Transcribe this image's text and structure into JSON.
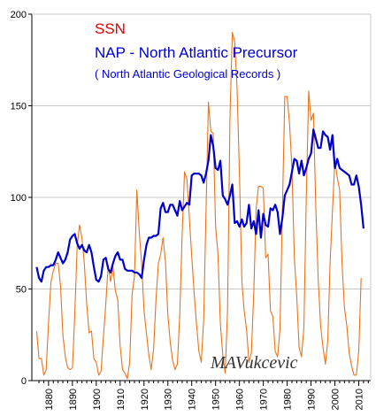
{
  "chart_data": {
    "type": "line",
    "title": "",
    "xlabel": "",
    "ylabel": "",
    "xlim": [
      1873,
      2015
    ],
    "ylim": [
      0,
      200
    ],
    "grid": "horizontal",
    "x_ticks": [
      "1880",
      "1890",
      "1900",
      "1910",
      "1920",
      "1930",
      "1940",
      "1950",
      "1960",
      "1970",
      "1980",
      "1990",
      "2000",
      "2010"
    ],
    "y_ticks": [
      "0",
      "50",
      "100",
      "150",
      "200"
    ],
    "legend": {
      "ssn_label": "SSN",
      "nap_label": "NAP - North  Atlantic Precursor",
      "nap_sublabel": "( North Atlantic Geological Records )"
    },
    "annotation": "MAVukcevic",
    "colors": {
      "ssn": "#e8741c",
      "nap": "#0000cc",
      "ssn_text": "#e60000",
      "nap_text": "#0000cc",
      "axis": "#000000",
      "grid": "#c8c8c8"
    },
    "series": [
      {
        "key": "ssn",
        "values": [
          [
            1875,
            27
          ],
          [
            1876,
            12
          ],
          [
            1877,
            12
          ],
          [
            1878,
            3
          ],
          [
            1879,
            6
          ],
          [
            1880,
            32
          ],
          [
            1881,
            54
          ],
          [
            1882,
            60
          ],
          [
            1883,
            64
          ],
          [
            1884,
            64
          ],
          [
            1885,
            52
          ],
          [
            1886,
            25
          ],
          [
            1887,
            13
          ],
          [
            1888,
            7
          ],
          [
            1889,
            6
          ],
          [
            1890,
            7
          ],
          [
            1891,
            36
          ],
          [
            1892,
            73
          ],
          [
            1893,
            85
          ],
          [
            1894,
            78
          ],
          [
            1895,
            64
          ],
          [
            1896,
            42
          ],
          [
            1897,
            26
          ],
          [
            1898,
            27
          ],
          [
            1899,
            12
          ],
          [
            1900,
            10
          ],
          [
            1901,
            3
          ],
          [
            1902,
            5
          ],
          [
            1903,
            24
          ],
          [
            1904,
            42
          ],
          [
            1905,
            63
          ],
          [
            1906,
            54
          ],
          [
            1907,
            62
          ],
          [
            1908,
            49
          ],
          [
            1909,
            44
          ],
          [
            1910,
            19
          ],
          [
            1911,
            6
          ],
          [
            1912,
            4
          ],
          [
            1913,
            1
          ],
          [
            1914,
            10
          ],
          [
            1915,
            47
          ],
          [
            1916,
            57
          ],
          [
            1917,
            104
          ],
          [
            1918,
            81
          ],
          [
            1919,
            64
          ],
          [
            1920,
            38
          ],
          [
            1921,
            26
          ],
          [
            1922,
            14
          ],
          [
            1923,
            6
          ],
          [
            1924,
            17
          ],
          [
            1925,
            44
          ],
          [
            1926,
            64
          ],
          [
            1927,
            69
          ],
          [
            1928,
            78
          ],
          [
            1929,
            65
          ],
          [
            1930,
            36
          ],
          [
            1931,
            21
          ],
          [
            1932,
            11
          ],
          [
            1933,
            6
          ],
          [
            1934,
            9
          ],
          [
            1935,
            36
          ],
          [
            1936,
            80
          ],
          [
            1937,
            114
          ],
          [
            1938,
            110
          ],
          [
            1939,
            89
          ],
          [
            1940,
            68
          ],
          [
            1941,
            48
          ],
          [
            1942,
            31
          ],
          [
            1943,
            16
          ],
          [
            1944,
            10
          ],
          [
            1945,
            33
          ],
          [
            1946,
            93
          ],
          [
            1947,
            152
          ],
          [
            1948,
            136
          ],
          [
            1949,
            135
          ],
          [
            1950,
            84
          ],
          [
            1951,
            69
          ],
          [
            1952,
            31
          ],
          [
            1953,
            14
          ],
          [
            1954,
            4
          ],
          [
            1955,
            38
          ],
          [
            1956,
            142
          ],
          [
            1957,
            190
          ],
          [
            1958,
            185
          ],
          [
            1959,
            159
          ],
          [
            1960,
            112
          ],
          [
            1961,
            54
          ],
          [
            1962,
            38
          ],
          [
            1963,
            28
          ],
          [
            1964,
            10
          ],
          [
            1965,
            15
          ],
          [
            1966,
            47
          ],
          [
            1967,
            94
          ],
          [
            1968,
            106
          ],
          [
            1969,
            106
          ],
          [
            1970,
            105
          ],
          [
            1971,
            67
          ],
          [
            1972,
            69
          ],
          [
            1973,
            38
          ],
          [
            1974,
            35
          ],
          [
            1975,
            16
          ],
          [
            1976,
            13
          ],
          [
            1977,
            28
          ],
          [
            1978,
            93
          ],
          [
            1979,
            155
          ],
          [
            1980,
            155
          ],
          [
            1981,
            140
          ],
          [
            1982,
            116
          ],
          [
            1983,
            67
          ],
          [
            1984,
            46
          ],
          [
            1985,
            18
          ],
          [
            1986,
            13
          ],
          [
            1987,
            29
          ],
          [
            1988,
            100
          ],
          [
            1989,
            158
          ],
          [
            1990,
            142
          ],
          [
            1991,
            146
          ],
          [
            1992,
            94
          ],
          [
            1993,
            55
          ],
          [
            1994,
            30
          ],
          [
            1995,
            18
          ],
          [
            1996,
            9
          ],
          [
            1997,
            22
          ],
          [
            1998,
            64
          ],
          [
            1999,
            93
          ],
          [
            2000,
            120
          ],
          [
            2001,
            111
          ],
          [
            2002,
            104
          ],
          [
            2003,
            64
          ],
          [
            2004,
            40
          ],
          [
            2005,
            30
          ],
          [
            2006,
            15
          ],
          [
            2007,
            8
          ],
          [
            2008,
            3
          ],
          [
            2009,
            3
          ],
          [
            2010,
            16
          ],
          [
            2011,
            56
          ]
        ]
      },
      {
        "key": "nap",
        "values": [
          [
            1875,
            62
          ],
          [
            1876,
            56
          ],
          [
            1877,
            54
          ],
          [
            1878,
            60
          ],
          [
            1879,
            62
          ],
          [
            1880,
            62
          ],
          [
            1881,
            63
          ],
          [
            1882,
            63
          ],
          [
            1883,
            66
          ],
          [
            1884,
            70
          ],
          [
            1885,
            67
          ],
          [
            1886,
            64
          ],
          [
            1887,
            66
          ],
          [
            1888,
            70
          ],
          [
            1889,
            77
          ],
          [
            1890,
            79
          ],
          [
            1891,
            80
          ],
          [
            1892,
            75
          ],
          [
            1893,
            72
          ],
          [
            1894,
            74
          ],
          [
            1895,
            71
          ],
          [
            1896,
            70
          ],
          [
            1897,
            74
          ],
          [
            1898,
            70
          ],
          [
            1899,
            62
          ],
          [
            1900,
            55
          ],
          [
            1901,
            54
          ],
          [
            1902,
            57
          ],
          [
            1903,
            66
          ],
          [
            1904,
            67
          ],
          [
            1905,
            61
          ],
          [
            1906,
            59
          ],
          [
            1907,
            64
          ],
          [
            1908,
            68
          ],
          [
            1909,
            70
          ],
          [
            1910,
            66
          ],
          [
            1911,
            66
          ],
          [
            1912,
            61
          ],
          [
            1913,
            60
          ],
          [
            1914,
            60
          ],
          [
            1915,
            60
          ],
          [
            1916,
            59
          ],
          [
            1917,
            59
          ],
          [
            1918,
            58
          ],
          [
            1919,
            56
          ],
          [
            1920,
            66
          ],
          [
            1921,
            74
          ],
          [
            1922,
            78
          ],
          [
            1923,
            78
          ],
          [
            1924,
            79
          ],
          [
            1925,
            79
          ],
          [
            1926,
            80
          ],
          [
            1927,
            94
          ],
          [
            1928,
            97
          ],
          [
            1929,
            92
          ],
          [
            1930,
            92
          ],
          [
            1931,
            96
          ],
          [
            1932,
            96
          ],
          [
            1933,
            93
          ],
          [
            1934,
            90
          ],
          [
            1935,
            98
          ],
          [
            1936,
            93
          ],
          [
            1937,
            95
          ],
          [
            1938,
            97
          ],
          [
            1939,
            96
          ],
          [
            1940,
            112
          ],
          [
            1941,
            113
          ],
          [
            1942,
            113
          ],
          [
            1943,
            113
          ],
          [
            1944,
            112
          ],
          [
            1945,
            108
          ],
          [
            1946,
            113
          ],
          [
            1947,
            120
          ],
          [
            1948,
            134
          ],
          [
            1949,
            128
          ],
          [
            1950,
            116
          ],
          [
            1951,
            115
          ],
          [
            1952,
            120
          ],
          [
            1953,
            101
          ],
          [
            1954,
            99
          ],
          [
            1955,
            96
          ],
          [
            1956,
            101
          ],
          [
            1957,
            107
          ],
          [
            1958,
            86
          ],
          [
            1959,
            87
          ],
          [
            1960,
            84
          ],
          [
            1961,
            88
          ],
          [
            1962,
            84
          ],
          [
            1963,
            86
          ],
          [
            1964,
            96
          ],
          [
            1965,
            83
          ],
          [
            1966,
            87
          ],
          [
            1967,
            80
          ],
          [
            1968,
            93
          ],
          [
            1969,
            78
          ],
          [
            1970,
            91
          ],
          [
            1971,
            85
          ],
          [
            1972,
            84
          ],
          [
            1973,
            94
          ],
          [
            1974,
            93
          ],
          [
            1975,
            96
          ],
          [
            1976,
            92
          ],
          [
            1977,
            80
          ],
          [
            1978,
            89
          ],
          [
            1979,
            101
          ],
          [
            1980,
            104
          ],
          [
            1981,
            107
          ],
          [
            1982,
            114
          ],
          [
            1983,
            121
          ],
          [
            1984,
            120
          ],
          [
            1985,
            113
          ],
          [
            1986,
            120
          ],
          [
            1987,
            112
          ],
          [
            1988,
            116
          ],
          [
            1989,
            121
          ],
          [
            1990,
            124
          ],
          [
            1991,
            137
          ],
          [
            1992,
            132
          ],
          [
            1993,
            127
          ],
          [
            1994,
            127
          ],
          [
            1995,
            136
          ],
          [
            1996,
            134
          ],
          [
            1997,
            133
          ],
          [
            1998,
            126
          ],
          [
            1999,
            134
          ],
          [
            2000,
            116
          ],
          [
            2001,
            121
          ],
          [
            2002,
            116
          ],
          [
            2003,
            115
          ],
          [
            2004,
            114
          ],
          [
            2005,
            113
          ],
          [
            2006,
            112
          ],
          [
            2007,
            107
          ],
          [
            2008,
            107
          ],
          [
            2009,
            112
          ],
          [
            2010,
            106
          ],
          [
            2011,
            96
          ],
          [
            2012,
            83
          ]
        ]
      }
    ]
  }
}
